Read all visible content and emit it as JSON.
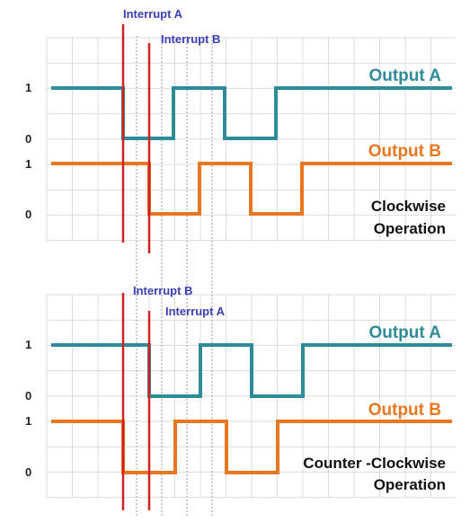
{
  "colors": {
    "output_a": "#2e8c98",
    "output_b": "#e87722",
    "interrupt": "#d42020",
    "interrupt_label": "#3a3fb5",
    "grid": "#dcdcdc"
  },
  "clockwise": {
    "interrupt_first": "Interrupt A",
    "interrupt_second": "Interrupt B",
    "output_a_label": "Output A",
    "output_b_label": "Output B",
    "level_a_high": "1",
    "level_a_low": "0",
    "level_b_high": "1",
    "level_b_low": "0",
    "caption_line1": "Clockwise",
    "caption_line2": "Operation"
  },
  "counter_clockwise": {
    "interrupt_first": "Interrupt B",
    "interrupt_second": "Interrupt A",
    "output_a_label": "Output A",
    "output_b_label": "Output B",
    "level_a_high": "1",
    "level_a_low": "0",
    "level_b_high": "1",
    "level_b_low": "0",
    "caption_line1": "Counter -Clockwise",
    "caption_line2": "Operation"
  }
}
